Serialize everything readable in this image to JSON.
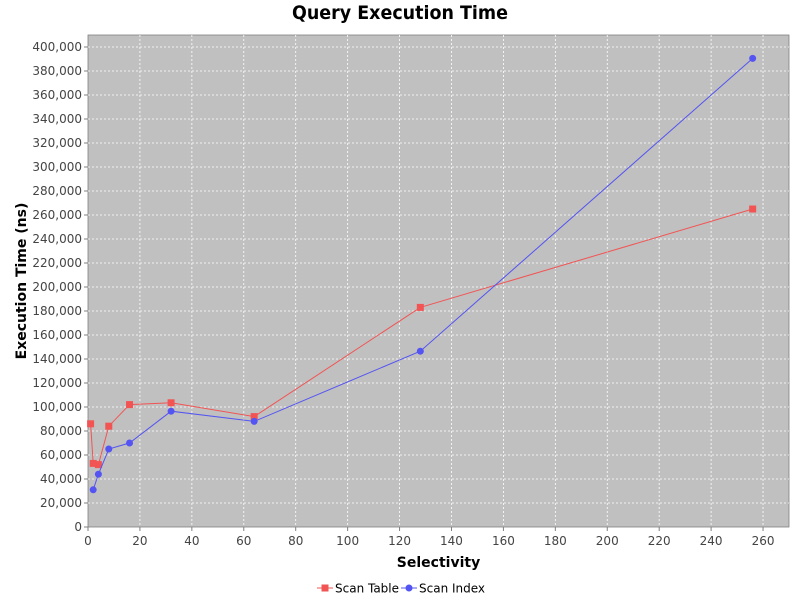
{
  "chart_data": {
    "type": "line",
    "title": "Query Execution Time",
    "xlabel": "Selectivity",
    "ylabel": "Execution Time (ns)",
    "xlim": [
      0,
      270
    ],
    "ylim": [
      0,
      410000
    ],
    "x_ticks": [
      "0",
      "20",
      "40",
      "60",
      "80",
      "100",
      "120",
      "140",
      "160",
      "180",
      "200",
      "220",
      "240",
      "260"
    ],
    "y_ticks": [
      "0",
      "20,000",
      "40,000",
      "60,000",
      "80,000",
      "100,000",
      "120,000",
      "140,000",
      "160,000",
      "180,000",
      "200,000",
      "220,000",
      "240,000",
      "260,000",
      "280,000",
      "300,000",
      "320,000",
      "340,000",
      "360,000",
      "380,000",
      "400,000"
    ],
    "x_tick_values": [
      0,
      20,
      40,
      60,
      80,
      100,
      120,
      140,
      160,
      180,
      200,
      220,
      240,
      260
    ],
    "y_tick_values": [
      0,
      20000,
      40000,
      60000,
      80000,
      100000,
      120000,
      140000,
      160000,
      180000,
      200000,
      220000,
      240000,
      260000,
      280000,
      300000,
      320000,
      340000,
      360000,
      380000,
      400000
    ],
    "grid": true,
    "legend_position": "bottom",
    "plot_background": "#c0c0c0",
    "series": [
      {
        "name": "Scan Table",
        "color": "#f25454",
        "marker": "square",
        "x": [
          1,
          2,
          4,
          8,
          16,
          32,
          64,
          128,
          256
        ],
        "y": [
          86000,
          53000,
          52000,
          84000,
          102000,
          103500,
          92000,
          183000,
          265000
        ]
      },
      {
        "name": "Scan Index",
        "color": "#5454f2",
        "marker": "circle",
        "x": [
          2,
          4,
          8,
          16,
          32,
          64,
          128,
          256
        ],
        "y": [
          31000,
          44000,
          65000,
          70000,
          96500,
          88000,
          146500,
          390500
        ]
      }
    ]
  }
}
